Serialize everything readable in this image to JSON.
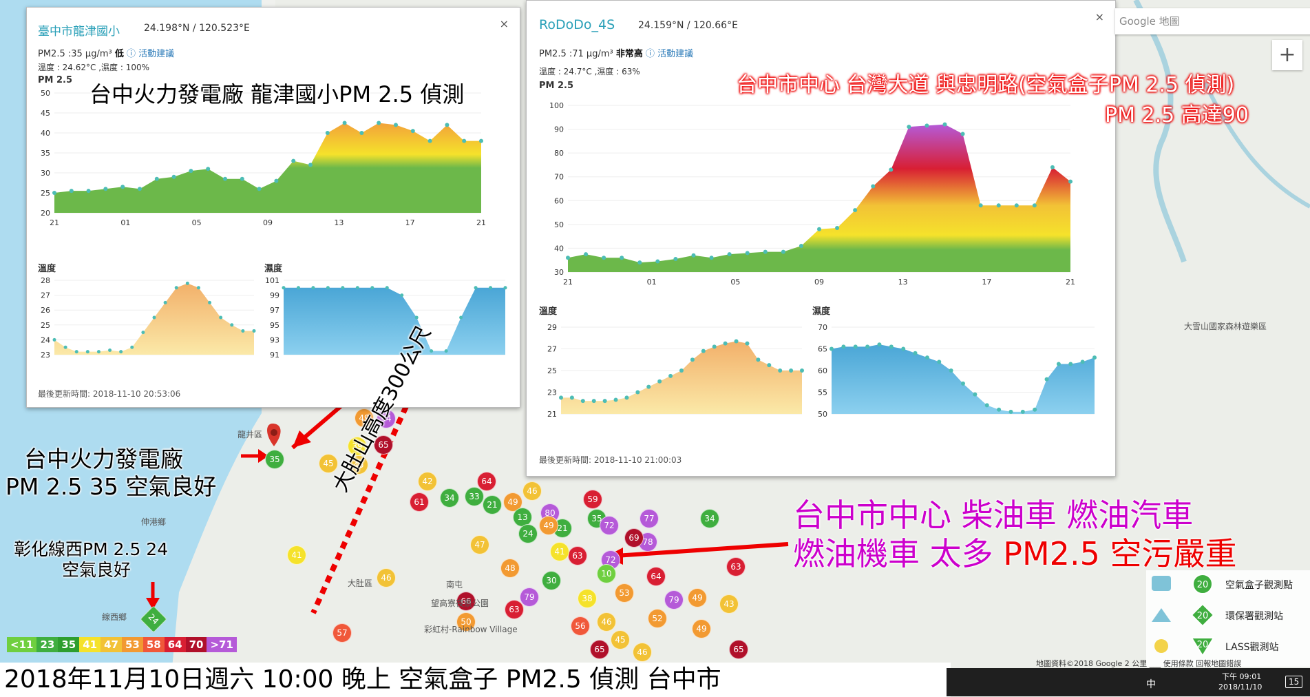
{
  "popup_left": {
    "title": "臺中市龍津國小",
    "coords": "24.198°N / 120.523°E",
    "pm_line": "PM2.5 :35 μg/m³",
    "level": "低",
    "activity": "活動建議",
    "temp_humid": "溫度 : 24.62°C ,濕度 : 100%",
    "pm_label": "PM 2.5",
    "temp_label": "溫度",
    "humid_label": "濕度",
    "updated": "最後更新時間: 2018-11-10 20:53:06",
    "close": "×",
    "x_ticks": [
      "21",
      "01",
      "05",
      "09",
      "13",
      "17",
      "21"
    ],
    "pm_yticks": [
      "50",
      "45",
      "40",
      "35",
      "30",
      "25",
      "20"
    ],
    "temp_yticks": [
      "28",
      "27",
      "26",
      "25",
      "24",
      "23"
    ],
    "humid_yticks": [
      "101",
      "99",
      "97",
      "95",
      "93",
      "91"
    ]
  },
  "popup_right": {
    "title": "RoDoDo_4S",
    "coords": "24.159°N / 120.66°E",
    "pm_line": "PM2.5 :71 μg/m³",
    "level": "非常高",
    "activity": "活動建議",
    "temp_humid": "溫度 : 24.7°C ,濕度 : 63%",
    "pm_label": "PM 2.5",
    "temp_label": "溫度",
    "humid_label": "濕度",
    "updated": "最後更新時間: 2018-11-10 21:00:03",
    "close": "×",
    "x_ticks": [
      "21",
      "01",
      "05",
      "09",
      "13",
      "17",
      "21"
    ],
    "pm_yticks": [
      "100",
      "90",
      "80",
      "70",
      "60",
      "50",
      "40",
      "30"
    ],
    "temp_yticks": [
      "29",
      "27",
      "25",
      "23",
      "21"
    ],
    "humid_yticks": [
      "70",
      "65",
      "60",
      "55",
      "50"
    ]
  },
  "chart_data": [
    {
      "type": "area",
      "title": "PM 2.5",
      "series": [
        {
          "values": [
            25,
            25.5,
            25.5,
            26,
            26.5,
            26,
            28.5,
            29,
            30.5,
            31,
            28.5,
            28.5,
            26,
            28,
            33,
            32,
            40,
            42.5,
            40,
            42.5,
            42,
            40.5,
            38,
            42,
            38,
            38
          ]
        }
      ],
      "ylim": [
        20,
        50
      ]
    },
    {
      "type": "area",
      "title": "溫度",
      "series": [
        {
          "values": [
            24,
            23.5,
            23.2,
            23.2,
            23.2,
            23.3,
            23.2,
            23.5,
            24.5,
            25.5,
            26.5,
            27.5,
            27.8,
            27.5,
            26.5,
            25.5,
            25,
            24.6,
            24.6
          ]
        }
      ],
      "ylim": [
        23,
        28
      ]
    },
    {
      "type": "area",
      "title": "濕度",
      "series": [
        {
          "values": [
            100,
            100,
            100,
            100,
            100,
            100,
            100,
            100,
            99,
            96,
            91.5,
            91.5,
            96,
            100,
            100,
            100
          ]
        }
      ],
      "ylim": [
        91,
        101
      ]
    },
    {
      "type": "area",
      "title": "PM 2.5",
      "series": [
        {
          "values": [
            36,
            37.5,
            36,
            36,
            34,
            34.5,
            35.5,
            37,
            36,
            37.5,
            38,
            38.5,
            38.5,
            41,
            48,
            48.5,
            56,
            66,
            73,
            91,
            91.5,
            92,
            88,
            58,
            58,
            58,
            58,
            74,
            68
          ]
        }
      ],
      "ylim": [
        30,
        100
      ]
    },
    {
      "type": "area",
      "title": "溫度",
      "series": [
        {
          "values": [
            22.5,
            22.5,
            22.2,
            22.2,
            22.2,
            22.3,
            22.5,
            23,
            23.5,
            24,
            24.5,
            25,
            26,
            26.8,
            27.2,
            27.5,
            27.7,
            27.5,
            26,
            25.5,
            25,
            25,
            25
          ]
        }
      ],
      "ylim": [
        21,
        29
      ]
    },
    {
      "type": "area",
      "title": "濕度",
      "series": [
        {
          "values": [
            65,
            65.5,
            65.5,
            65.5,
            66,
            65.5,
            65,
            64,
            63,
            62,
            60,
            57,
            54.5,
            52,
            51,
            50.5,
            50.5,
            51,
            58,
            61.5,
            61.5,
            62,
            63
          ]
        }
      ],
      "ylim": [
        50,
        70
      ]
    }
  ],
  "captions": {
    "left_chart": "台中火力發電廠 龍津國小PM 2.5 偵測",
    "right_chart_1": "台中市中心 台灣大道 與忠明路(空氣盒子PM 2.5 偵測)",
    "right_chart_2": "PM 2.5 高達90",
    "plant_1": "台中火力發電廠",
    "plant_2": "PM 2.5 35 空氣良好",
    "changhua_1": "彰化線西PM 2.5 24",
    "changhua_2": "空氣良好",
    "mountain": "大肚山高度300公尺",
    "city_1": "台中市中心 柴油車 燃油汽車",
    "city_2a": "燃油機車 太多",
    "city_2b": "PM2.5 空污嚴重",
    "bottom": "2018年11月10日週六 10:00 晚上 空氣盒子 PM2.5 偵測 台中市"
  },
  "aqi_legend": [
    {
      "label": "<11",
      "color": "#6fcf3f"
    },
    {
      "label": "23",
      "color": "#3fae3f"
    },
    {
      "label": "35",
      "color": "#2e9e2e"
    },
    {
      "label": "41",
      "color": "#f5e22b"
    },
    {
      "label": "47",
      "color": "#f2c236"
    },
    {
      "label": "53",
      "color": "#f29a32"
    },
    {
      "label": "58",
      "color": "#f0583a"
    },
    {
      "label": "64",
      "color": "#d81f33"
    },
    {
      "label": "70",
      "color": "#b0102a"
    },
    {
      "label": ">71",
      "color": "#b55ad8"
    }
  ],
  "map": {
    "search_placeholder": "Google 地圖",
    "zoom_in": "+",
    "attribution": "地圖資料©2018 Google   2 公里 ___   使用條款   回報地圖錯誤",
    "legend": [
      {
        "label": "空氣盒子觀測點",
        "badge": "20"
      },
      {
        "label": "環保署觀測站",
        "badge": "20"
      },
      {
        "label": "LASS觀測站",
        "badge": "20"
      }
    ],
    "place_labels": [
      "龍井區",
      "大肚區",
      "線西鄉",
      "伸港鄉",
      "南屯",
      "彩虹村-Rainbow Village",
      "望高寮夜景公園",
      "大雪山國家森林遊樂區"
    ],
    "markers": [
      "35",
      "24",
      "49",
      "94",
      "39",
      "45",
      "45",
      "65",
      "42",
      "61",
      "34",
      "33",
      "64",
      "21",
      "47",
      "41",
      "57",
      "46",
      "46",
      "80",
      "49",
      "13",
      "24",
      "35",
      "78",
      "77",
      "34",
      "72",
      "63",
      "64",
      "79",
      "53",
      "38",
      "66",
      "50",
      "56",
      "30",
      "79",
      "46",
      "63",
      "52",
      "65",
      "43",
      "49",
      "41",
      "21",
      "10",
      "48",
      "49",
      "63",
      "65",
      "45",
      "46",
      "49",
      "72",
      "59",
      "69"
    ]
  },
  "taskbar": {
    "time": "下午 09:01",
    "date": "2018/11/10",
    "lang": "中",
    "notif": "15"
  }
}
